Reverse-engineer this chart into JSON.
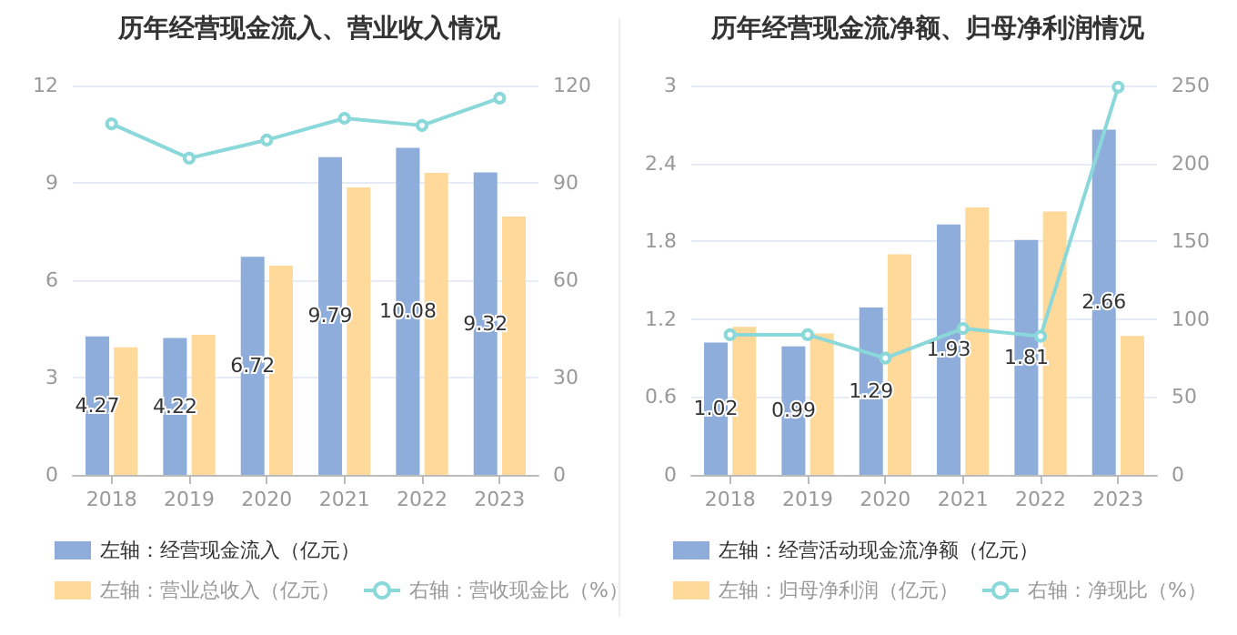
{
  "chart_data": [
    {
      "type": "bar",
      "title": "历年经营现金流入、营业收入情况",
      "categories": [
        "2018",
        "2019",
        "2020",
        "2021",
        "2022",
        "2023"
      ],
      "series": [
        {
          "name": "左轴：经营现金流入（亿元）",
          "color": "#8eaddb",
          "values": [
            4.27,
            4.22,
            6.72,
            9.79,
            10.08,
            9.32
          ],
          "value_labels": [
            "4.27",
            "4.22",
            "6.72",
            "9.79",
            "10.08",
            "9.32"
          ]
        },
        {
          "name": "左轴：营业总收入（亿元）",
          "color": "#ffd999",
          "values": [
            3.93,
            4.32,
            6.45,
            8.86,
            9.31,
            7.96
          ]
        },
        {
          "name": "右轴：营收现金比（%）",
          "type": "line",
          "axis": "y2",
          "color": "#8ad8da",
          "values": [
            108.2,
            97.6,
            103.2,
            109.9,
            107.7,
            116.1
          ]
        }
      ],
      "ylim": [
        0,
        12
      ],
      "yticks": [
        0,
        3,
        6,
        9,
        12
      ],
      "y2lim": [
        0,
        120
      ],
      "y2ticks": [
        0,
        30,
        60,
        90,
        120
      ],
      "grid": "y",
      "legend": "bottom",
      "marker": "circle",
      "line_style": "solid"
    },
    {
      "type": "bar",
      "title": "历年经营现金流净额、归母净利润情况",
      "categories": [
        "2018",
        "2019",
        "2020",
        "2021",
        "2022",
        "2023"
      ],
      "series": [
        {
          "name": "左轴：经营活动现金流净额（亿元）",
          "color": "#8eaddb",
          "values": [
            1.02,
            0.99,
            1.29,
            1.93,
            1.81,
            2.66
          ],
          "value_labels": [
            "1.02",
            "0.99",
            "1.29",
            "1.93",
            "1.81",
            "2.66"
          ]
        },
        {
          "name": "左轴：归母净利润（亿元）",
          "color": "#ffd999",
          "values": [
            1.14,
            1.09,
            1.7,
            2.06,
            2.03,
            1.07
          ]
        },
        {
          "name": "右轴：净现比（%）",
          "type": "line",
          "axis": "y2",
          "color": "#8ad8da",
          "values": [
            90,
            90,
            75,
            94,
            89,
            249
          ]
        }
      ],
      "ylim": [
        0,
        3
      ],
      "yticks": [
        0,
        0.6,
        1.2,
        1.8,
        2.4,
        3
      ],
      "y2lim": [
        0,
        250
      ],
      "y2ticks": [
        0,
        50,
        100,
        150,
        200,
        250
      ],
      "grid": "y",
      "legend": "bottom",
      "marker": "circle",
      "line_style": "solid"
    }
  ]
}
